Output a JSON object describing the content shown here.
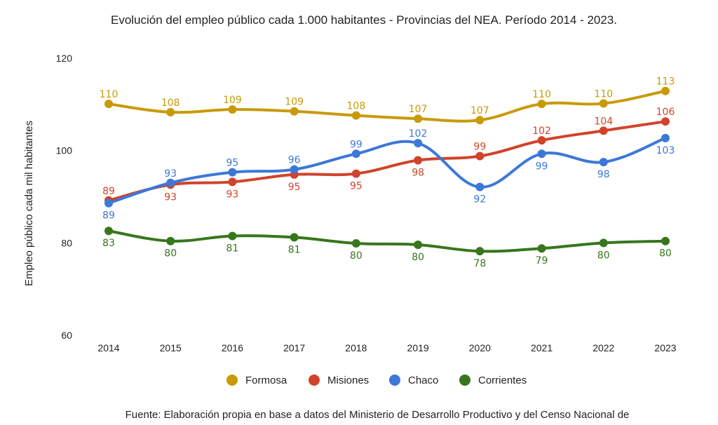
{
  "chart_data": {
    "type": "line",
    "title": "Evolución del empleo público cada 1.000 habitantes - Provincias del NEA. Período 2014 - 2023.",
    "xlabel": "",
    "ylabel": "Empleo público cada mil habitantes",
    "ylim": [
      60,
      120
    ],
    "yticks": [
      "60",
      "80",
      "100",
      "120"
    ],
    "x": [
      "2014",
      "2015",
      "2016",
      "2017",
      "2018",
      "2019",
      "2020",
      "2021",
      "2022",
      "2023"
    ],
    "grid": false,
    "legend_position": "bottom",
    "series": [
      {
        "name": "Formosa",
        "color": "#c99a06",
        "values": [
          110.1,
          108.3,
          108.9,
          108.5,
          107.6,
          106.9,
          106.6,
          110.1,
          110.2,
          112.9
        ],
        "labels": [
          "110",
          "108",
          "109",
          "109",
          "108",
          "107",
          "107",
          "110",
          "110",
          "113"
        ],
        "label_pos": [
          "above",
          "above",
          "above",
          "above",
          "above",
          "above",
          "above",
          "above",
          "above",
          "above"
        ]
      },
      {
        "name": "Misiones",
        "color": "#d1432b",
        "values": [
          89.2,
          92.6,
          93.2,
          94.8,
          95.0,
          97.9,
          98.8,
          102.2,
          104.3,
          106.3
        ],
        "labels": [
          "89",
          "93",
          "93",
          "95",
          "95",
          "98",
          "99",
          "102",
          "104",
          "106"
        ],
        "label_pos": [
          "above",
          "below",
          "below",
          "below",
          "below",
          "below",
          "above",
          "above",
          "above",
          "above"
        ]
      },
      {
        "name": "Chaco",
        "color": "#3c78d8",
        "values": [
          88.6,
          93.0,
          95.3,
          95.9,
          99.3,
          101.6,
          92.1,
          99.3,
          97.5,
          102.7
        ],
        "labels": [
          "89",
          "93",
          "95",
          "96",
          "99",
          "102",
          "92",
          "99",
          "98",
          "103"
        ],
        "label_pos": [
          "below",
          "above",
          "above",
          "above",
          "above",
          "above",
          "below",
          "below",
          "below",
          "below"
        ]
      },
      {
        "name": "Corrientes",
        "color": "#38761d",
        "values": [
          82.6,
          80.4,
          81.5,
          81.2,
          79.9,
          79.6,
          78.2,
          78.8,
          80.0,
          80.4
        ],
        "labels": [
          "83",
          "80",
          "81",
          "81",
          "80",
          "80",
          "78",
          "79",
          "80",
          "80"
        ],
        "label_pos": [
          "below",
          "below",
          "below",
          "below",
          "below",
          "below",
          "below",
          "below",
          "below",
          "below"
        ]
      }
    ]
  },
  "source_note": "Fuente: Elaboración propia en base a datos del Ministerio de Desarrollo Productivo y del Censo Nacional de"
}
